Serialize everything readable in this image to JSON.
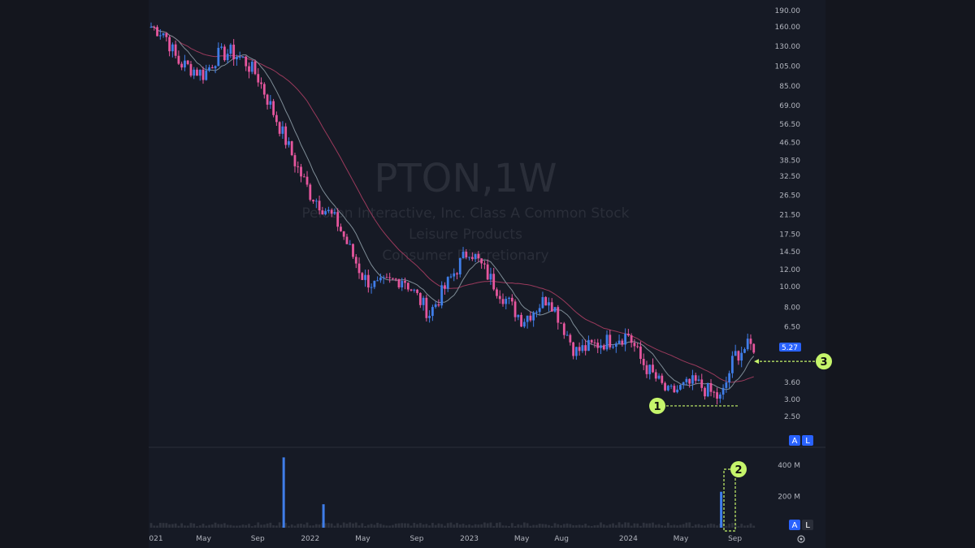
{
  "window": {
    "background": "#14161e",
    "panel_background": "#161a25"
  },
  "watermark": {
    "symbol": "PTON,1W",
    "line1": "Peloton Interactive, Inc. Class A Common Stock",
    "line2": "Leisure Products",
    "line3": "Consumer Discretionary"
  },
  "chart_data": {
    "type": "candlestick",
    "symbol": "PTON",
    "interval": "1W",
    "price_axis": {
      "scale": "log",
      "ticks": [
        "190.00",
        "160.00",
        "130.00",
        "105.00",
        "85.00",
        "69.00",
        "56.50",
        "46.50",
        "38.50",
        "32.50",
        "26.50",
        "21.50",
        "17.50",
        "14.50",
        "12.00",
        "10.00",
        "8.00",
        "6.50",
        "5.27",
        "3.60",
        "3.00",
        "2.50"
      ],
      "range": [
        2.4,
        195
      ]
    },
    "volume_axis": {
      "ticks": [
        "400 M",
        "200 M"
      ],
      "range": [
        0,
        480
      ]
    },
    "time_axis": {
      "labels": [
        "021",
        "May",
        "Sep",
        "2022",
        "May",
        "Sep",
        "2023",
        "May",
        "Aug",
        "2024",
        "May",
        "Sep"
      ]
    },
    "last_price": "5.27",
    "colors": {
      "up": "#3f7de8",
      "down": "#e5569d",
      "ma_fast": "#7e8c96",
      "ma_slow": "#9b3a5c",
      "annotation": "#c6f56b"
    },
    "price_path": [
      {
        "t": "2021-01",
        "close": 160
      },
      {
        "t": "2021-02",
        "close": 150
      },
      {
        "t": "2021-03",
        "close": 110
      },
      {
        "t": "2021-05",
        "close": 96
      },
      {
        "t": "2021-06",
        "close": 118
      },
      {
        "t": "2021-07",
        "close": 122
      },
      {
        "t": "2021-08",
        "close": 112
      },
      {
        "t": "2021-09",
        "close": 95
      },
      {
        "t": "2021-11",
        "close": 50
      },
      {
        "t": "2021-12",
        "close": 36
      },
      {
        "t": "2022-01",
        "close": 27
      },
      {
        "t": "2022-03",
        "close": 20
      },
      {
        "t": "2022-05",
        "close": 11
      },
      {
        "t": "2022-06",
        "close": 10
      },
      {
        "t": "2022-08",
        "close": 11
      },
      {
        "t": "2022-10",
        "close": 7.5
      },
      {
        "t": "2022-12",
        "close": 12
      },
      {
        "t": "2023-01",
        "close": 15
      },
      {
        "t": "2023-03",
        "close": 10
      },
      {
        "t": "2023-05",
        "close": 7
      },
      {
        "t": "2023-07",
        "close": 9
      },
      {
        "t": "2023-09",
        "close": 5
      },
      {
        "t": "2023-11",
        "close": 5.5
      },
      {
        "t": "2024-01",
        "close": 6
      },
      {
        "t": "2024-02",
        "close": 4.5
      },
      {
        "t": "2024-04",
        "close": 3.2
      },
      {
        "t": "2024-06",
        "close": 3.6
      },
      {
        "t": "2024-08",
        "close": 3.0
      },
      {
        "t": "2024-09",
        "close": 4.8
      },
      {
        "t": "2024-10",
        "close": 5.27
      }
    ],
    "volume_spikes": [
      {
        "t": "2021-11",
        "value": 450,
        "color": "up"
      },
      {
        "t": "2022-02",
        "value": 150,
        "color": "up"
      },
      {
        "t": "2024-08",
        "value": 230,
        "color": "up"
      }
    ],
    "annotations": [
      {
        "label": "1",
        "note": "support line near 2.8"
      },
      {
        "label": "2",
        "note": "volume spike box"
      },
      {
        "label": "3",
        "note": "arrow at 4.50"
      }
    ]
  },
  "scale_buttons": {
    "auto": "A",
    "log": "L"
  }
}
